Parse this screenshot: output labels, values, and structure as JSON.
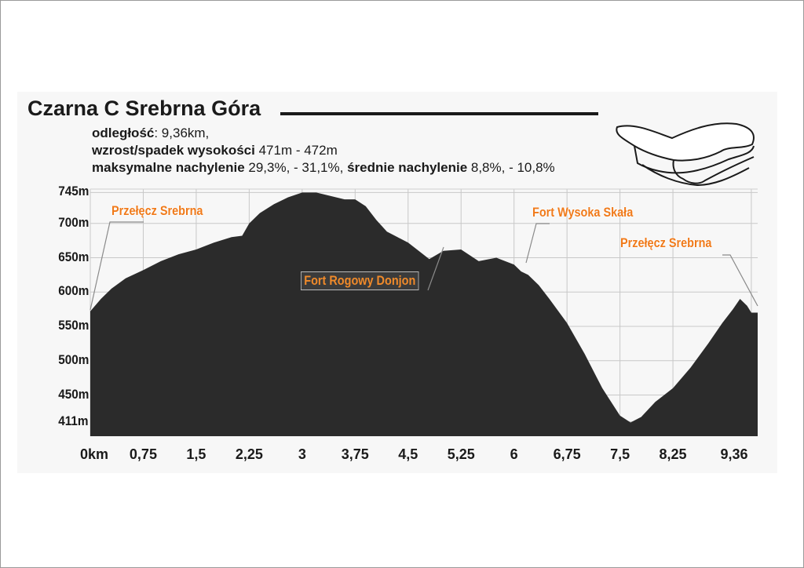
{
  "title": "Czarna C Srebrna Góra",
  "stats": {
    "distance_label": "odległość",
    "distance_value": ": 9,36km,",
    "elevation_label": "wzrost/spadek wysokości",
    "elevation_value": " 471m - 472m",
    "max_grade_label": "maksymalne nachylenie",
    "max_grade_value": " 29,3%, - 31,1%, ",
    "avg_grade_label": "średnie nachylenie",
    "avg_grade_value": " 8,8%, - 10,8%"
  },
  "colors": {
    "profile_fill": "#2b2b2b",
    "place_label": "#f07a1a",
    "grid": "#c8c8c8",
    "background": "#f7f7f7"
  },
  "chart_data": {
    "type": "area",
    "xlabel": "",
    "ylabel": "",
    "x_tick_labels": [
      "0km",
      "0,75",
      "1,5",
      "2,25",
      "3",
      "3,75",
      "4,5",
      "5,25",
      "6",
      "6,75",
      "7,5",
      "8,25",
      "9,36"
    ],
    "y_tick_labels": [
      "745m",
      "700m",
      "650m",
      "600m",
      "550m",
      "500m",
      "450m",
      "411m"
    ],
    "y_tick_values": [
      745,
      700,
      650,
      600,
      550,
      500,
      450,
      411
    ],
    "ylim": [
      390,
      750
    ],
    "grid": true,
    "series": [
      {
        "distance_km": [
          0,
          0.15,
          0.3,
          0.5,
          0.75,
          1.0,
          1.25,
          1.5,
          1.75,
          2.0,
          2.15,
          2.25,
          2.4,
          2.6,
          2.8,
          3.0,
          3.2,
          3.4,
          3.6,
          3.75,
          3.9,
          4.05,
          4.2,
          4.35,
          4.5,
          4.65,
          4.8,
          5.0,
          5.25,
          5.5,
          5.75,
          6.0,
          6.1,
          6.2,
          6.35,
          6.5,
          6.75,
          7.0,
          7.25,
          7.5,
          7.65,
          7.8,
          8.0,
          8.25,
          8.5,
          8.75,
          8.95,
          9.1,
          9.2,
          9.3,
          9.36,
          9.45
        ],
        "elevation_m": [
          572,
          590,
          605,
          620,
          632,
          645,
          655,
          662,
          672,
          680,
          682,
          700,
          715,
          728,
          738,
          745,
          745,
          740,
          735,
          735,
          725,
          705,
          688,
          680,
          672,
          660,
          648,
          660,
          662,
          645,
          650,
          640,
          630,
          625,
          610,
          590,
          555,
          510,
          460,
          420,
          410,
          418,
          440,
          460,
          490,
          525,
          555,
          575,
          590,
          580,
          570,
          570
        ]
      }
    ],
    "annotations": [
      {
        "text": "Przełęcz Srebrna",
        "distance_km": 0.0
      },
      {
        "text": "Fort Rogowy Donjon",
        "distance_km": 5.0
      },
      {
        "text": "Fort Wysoka Skała",
        "distance_km": 6.2
      },
      {
        "text": "Przełęcz Srebrna",
        "distance_km": 9.36
      }
    ]
  }
}
